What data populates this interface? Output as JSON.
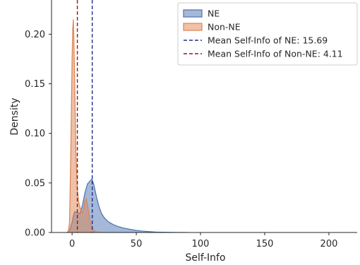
{
  "chart_data": {
    "type": "area",
    "title": "",
    "xlabel": "Self-Info",
    "ylabel": "Density",
    "xlim": [
      -16,
      222
    ],
    "ylim": [
      0,
      0.2345
    ],
    "xticks": [
      0,
      50,
      100,
      150,
      200
    ],
    "yticks": [
      0.0,
      0.05,
      0.1,
      0.15,
      0.2
    ],
    "xtick_labels": [
      "0",
      "50",
      "100",
      "150",
      "200"
    ],
    "ytick_labels": [
      "0.00",
      "0.05",
      "0.10",
      "0.15",
      "0.20"
    ],
    "grid": false,
    "legend_position": "top-right",
    "series": [
      {
        "name": "NE",
        "fill": "#4c72b0",
        "x": [
          -4,
          -2,
          0,
          1,
          2,
          4,
          6,
          8,
          10,
          12,
          14,
          15.5,
          17,
          19,
          21,
          23,
          25,
          28,
          32,
          36,
          40,
          45,
          50,
          55,
          60,
          65,
          70,
          75,
          80,
          90
        ],
        "y": [
          0,
          0.002,
          0.01,
          0.017,
          0.021,
          0.02,
          0.019,
          0.027,
          0.04,
          0.049,
          0.052,
          0.054,
          0.048,
          0.036,
          0.026,
          0.019,
          0.015,
          0.011,
          0.008,
          0.006,
          0.0045,
          0.0032,
          0.0022,
          0.0014,
          0.0009,
          0.0005,
          0.0003,
          0.0002,
          0.0001,
          0
        ]
      },
      {
        "name": "Non-NE",
        "fill": "#dd8452",
        "x": [
          -3,
          -2,
          -1,
          0,
          0.5,
          1,
          1.5,
          2,
          3,
          4,
          5,
          6,
          7,
          8,
          9,
          10,
          11,
          12,
          13,
          14,
          15,
          16,
          17,
          18,
          20,
          22
        ],
        "y": [
          0,
          0.01,
          0.08,
          0.175,
          0.205,
          0.215,
          0.19,
          0.155,
          0.08,
          0.045,
          0.032,
          0.026,
          0.022,
          0.02,
          0.025,
          0.032,
          0.034,
          0.028,
          0.02,
          0.012,
          0.007,
          0.004,
          0.002,
          0.001,
          0.0003,
          0
        ]
      }
    ],
    "vlines": [
      {
        "name": "Mean Self-Info of NE: 15.69",
        "x": 15.69,
        "color": "#1f2d8a"
      },
      {
        "name": "Mean Self-Info of Non-NE: 4.11",
        "x": 4.11,
        "color": "#8b1a1a"
      }
    ]
  }
}
